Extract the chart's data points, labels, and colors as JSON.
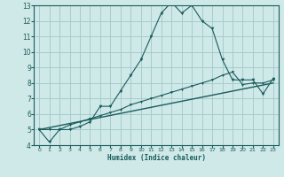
{
  "xlabel": "Humidex (Indice chaleur)",
  "bg_color": "#cfe8e8",
  "line_color": "#1a5c5c",
  "grid_color": "#a0c8c8",
  "xlim": [
    -0.5,
    23.5
  ],
  "ylim": [
    4,
    13
  ],
  "xticks": [
    0,
    1,
    2,
    3,
    4,
    5,
    6,
    7,
    8,
    9,
    10,
    11,
    12,
    13,
    14,
    15,
    16,
    17,
    18,
    19,
    20,
    21,
    22,
    23
  ],
  "yticks": [
    4,
    5,
    6,
    7,
    8,
    9,
    10,
    11,
    12,
    13
  ],
  "curve1_x": [
    0,
    1,
    2,
    3,
    4,
    5,
    6,
    7,
    8,
    9,
    10,
    11,
    12,
    13,
    14,
    15,
    16,
    17,
    18,
    19,
    20,
    21,
    22,
    23
  ],
  "curve1_y": [
    5.0,
    4.2,
    5.0,
    5.0,
    5.2,
    5.5,
    6.5,
    6.5,
    7.5,
    8.5,
    9.5,
    11.0,
    12.5,
    13.2,
    12.5,
    13.0,
    12.0,
    11.5,
    9.5,
    8.2,
    8.2,
    8.2,
    7.3,
    8.3
  ],
  "curve2_x": [
    0,
    1,
    2,
    3,
    4,
    5,
    6,
    7,
    8,
    9,
    10,
    11,
    12,
    13,
    14,
    15,
    16,
    17,
    18,
    19,
    20,
    21,
    22,
    23
  ],
  "curve2_y": [
    5.0,
    5.0,
    5.0,
    5.3,
    5.5,
    5.7,
    5.9,
    6.1,
    6.3,
    6.6,
    6.8,
    7.0,
    7.2,
    7.4,
    7.6,
    7.8,
    8.0,
    8.2,
    8.5,
    8.7,
    7.9,
    8.0,
    8.0,
    8.2
  ],
  "curve3_x": [
    0,
    23
  ],
  "curve3_y": [
    5.0,
    8.0
  ]
}
